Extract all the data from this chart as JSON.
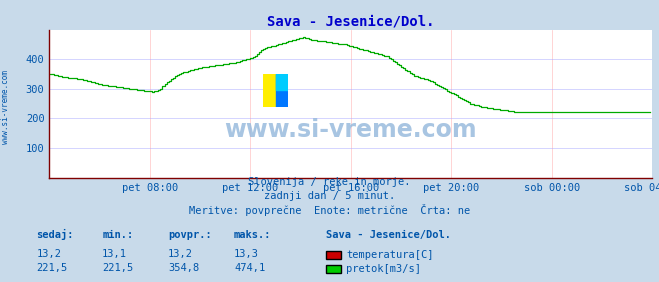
{
  "title": "Sava - Jesenice/Dol.",
  "title_color": "#0000cc",
  "bg_color": "#c8daea",
  "plot_bg_color": "#ffffff",
  "axis_color": "#800000",
  "grid_color_h": "#aaaaff",
  "grid_color_v": "#ffaaaa",
  "text_color": "#0055aa",
  "watermark": "www.si-vreme.com",
  "xtick_labels": [
    "pet 08:00",
    "pet 12:00",
    "pet 16:00",
    "pet 20:00",
    "sob 00:00",
    "sob 04:00"
  ],
  "xtick_positions": [
    48,
    96,
    144,
    192,
    240,
    288
  ],
  "ytick_values": [
    100,
    200,
    300,
    400
  ],
  "ylim": [
    0,
    500
  ],
  "xlim": [
    0,
    288
  ],
  "flow_color": "#00aa00",
  "temp_color": "#cc0000",
  "subtitle_lines": [
    "Slovenija / reke in morje.",
    "zadnji dan / 5 minut.",
    "Meritve: povprečne  Enote: metrične  Črta: ne"
  ],
  "table_headers": [
    "sedaj:",
    "min.:",
    "povpr.:",
    "maks.:"
  ],
  "table_row1": [
    "13,2",
    "13,1",
    "13,2",
    "13,3"
  ],
  "table_row2": [
    "221,5",
    "221,5",
    "354,8",
    "474,1"
  ],
  "legend_labels": [
    "temperatura[C]",
    "pretok[m3/s]"
  ],
  "legend_colors": [
    "#cc0000",
    "#00cc00"
  ],
  "station_label": "Sava - Jesenice/Dol.",
  "flow_data": [
    350,
    349,
    348,
    346,
    344,
    342,
    341,
    340,
    339,
    338,
    337,
    336,
    335,
    334,
    333,
    332,
    331,
    330,
    328,
    326,
    324,
    322,
    320,
    318,
    316,
    314,
    313,
    312,
    311,
    310,
    309,
    308,
    307,
    306,
    305,
    304,
    303,
    302,
    301,
    300,
    299,
    298,
    297,
    296,
    295,
    294,
    293,
    292,
    291,
    290,
    291,
    292,
    295,
    300,
    308,
    316,
    322,
    328,
    334,
    338,
    342,
    346,
    350,
    354,
    356,
    358,
    360,
    362,
    364,
    366,
    368,
    370,
    372,
    373,
    374,
    375,
    376,
    377,
    378,
    379,
    380,
    381,
    382,
    383,
    384,
    385,
    386,
    387,
    388,
    390,
    392,
    394,
    396,
    398,
    400,
    402,
    404,
    406,
    410,
    418,
    426,
    432,
    436,
    438,
    440,
    442,
    444,
    446,
    448,
    450,
    452,
    454,
    456,
    458,
    460,
    462,
    464,
    466,
    468,
    470,
    472,
    474,
    472,
    470,
    468,
    466,
    465,
    464,
    463,
    462,
    461,
    460,
    459,
    458,
    457,
    456,
    455,
    454,
    453,
    452,
    451,
    450,
    448,
    446,
    444,
    442,
    440,
    438,
    436,
    434,
    432,
    430,
    428,
    426,
    424,
    422,
    420,
    418,
    416,
    414,
    412,
    410,
    405,
    400,
    395,
    390,
    385,
    380,
    375,
    370,
    365,
    360,
    355,
    350,
    345,
    342,
    340,
    338,
    336,
    334,
    332,
    330,
    326,
    322,
    318,
    314,
    310,
    306,
    302,
    298,
    294,
    290,
    286,
    282,
    278,
    274,
    270,
    266,
    262,
    258,
    254,
    250,
    248,
    246,
    244,
    242,
    240,
    238,
    237,
    236,
    235,
    234,
    233,
    232,
    231,
    230,
    229,
    228,
    227,
    226,
    225,
    224,
    223,
    222,
    221,
    222,
    222,
    222,
    222,
    222,
    222,
    222,
    222,
    222,
    222,
    222,
    222,
    222,
    222,
    222,
    222,
    222,
    222,
    222,
    222,
    222,
    222,
    222,
    222,
    222,
    222,
    222,
    222,
    222,
    222,
    222,
    222,
    222,
    222,
    222,
    222,
    222,
    222,
    222,
    222,
    222,
    222,
    222,
    222,
    222,
    222,
    222,
    222,
    222,
    222,
    222,
    222,
    222,
    222,
    222,
    222,
    222,
    222,
    222,
    222,
    222,
    222,
    222
  ]
}
